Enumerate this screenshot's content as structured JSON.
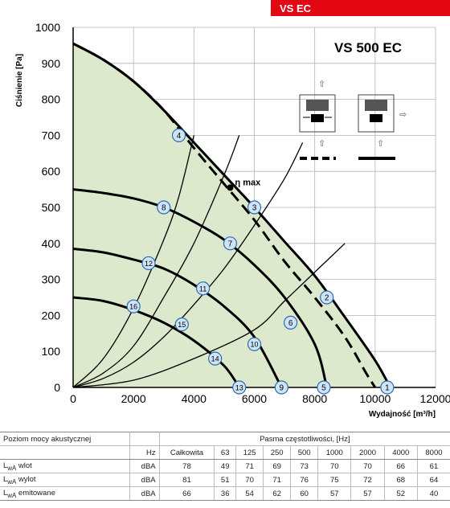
{
  "header": {
    "tag": "VS EC"
  },
  "chart_data": {
    "type": "line",
    "title": "VS 500 EC",
    "xlabel": "Wydajność [m³/h]",
    "ylabel": "Ciśnienie [Pa]",
    "xlim": [
      0,
      12000
    ],
    "ylim": [
      0,
      1000
    ],
    "xticks": [
      0,
      2000,
      4000,
      6000,
      8000,
      10000,
      12000
    ],
    "yticks": [
      0,
      100,
      200,
      300,
      400,
      500,
      600,
      700,
      800,
      900,
      1000
    ],
    "grid": true,
    "eta_label": "η max",
    "eta_point": {
      "x": 5200,
      "y": 555
    },
    "fan_curves": [
      {
        "style": "solid",
        "points": [
          [
            0,
            955
          ],
          [
            1000,
            910
          ],
          [
            2000,
            850
          ],
          [
            3000,
            770
          ],
          [
            4000,
            680
          ],
          [
            5000,
            590
          ],
          [
            6000,
            500
          ],
          [
            7000,
            405
          ],
          [
            8000,
            310
          ],
          [
            9000,
            195
          ],
          [
            10000,
            75
          ],
          [
            10500,
            0
          ]
        ]
      },
      {
        "style": "dashed",
        "points": [
          [
            0,
            955
          ],
          [
            1000,
            910
          ],
          [
            2000,
            850
          ],
          [
            3000,
            770
          ],
          [
            4000,
            665
          ],
          [
            5000,
            565
          ],
          [
            6000,
            465
          ],
          [
            7000,
            350
          ],
          [
            8000,
            250
          ],
          [
            9000,
            140
          ],
          [
            9700,
            40
          ],
          [
            10000,
            0
          ]
        ]
      },
      {
        "style": "solid",
        "points": [
          [
            0,
            550
          ],
          [
            1000,
            540
          ],
          [
            2000,
            525
          ],
          [
            3000,
            500
          ],
          [
            4000,
            460
          ],
          [
            5000,
            410
          ],
          [
            6000,
            340
          ],
          [
            7000,
            250
          ],
          [
            8000,
            120
          ],
          [
            8400,
            0
          ]
        ]
      },
      {
        "style": "solid",
        "points": [
          [
            0,
            385
          ],
          [
            1000,
            375
          ],
          [
            2000,
            355
          ],
          [
            3000,
            330
          ],
          [
            4000,
            285
          ],
          [
            5000,
            225
          ],
          [
            6000,
            140
          ],
          [
            6900,
            0
          ]
        ]
      },
      {
        "style": "solid",
        "points": [
          [
            0,
            250
          ],
          [
            1000,
            240
          ],
          [
            2000,
            215
          ],
          [
            3000,
            180
          ],
          [
            4000,
            130
          ],
          [
            5000,
            60
          ],
          [
            5500,
            0
          ]
        ]
      }
    ],
    "system_curves": [
      {
        "points": [
          [
            0,
            0
          ],
          [
            1000,
            80
          ],
          [
            2000,
            220
          ],
          [
            3000,
            410
          ],
          [
            3500,
            530
          ],
          [
            4000,
            700
          ]
        ]
      },
      {
        "points": [
          [
            0,
            0
          ],
          [
            1000,
            40
          ],
          [
            2000,
            115
          ],
          [
            3000,
            250
          ],
          [
            4000,
            400
          ],
          [
            5000,
            590
          ],
          [
            5500,
            700
          ]
        ]
      },
      {
        "points": [
          [
            0,
            0
          ],
          [
            1000,
            25
          ],
          [
            2000,
            70
          ],
          [
            3000,
            140
          ],
          [
            4000,
            230
          ],
          [
            5000,
            330
          ],
          [
            6000,
            450
          ],
          [
            7000,
            580
          ],
          [
            7600,
            680
          ]
        ]
      },
      {
        "points": [
          [
            0,
            0
          ],
          [
            2000,
            20
          ],
          [
            4000,
            80
          ],
          [
            6000,
            160
          ],
          [
            7000,
            240
          ],
          [
            8000,
            320
          ],
          [
            9000,
            400
          ]
        ]
      }
    ],
    "markers": [
      {
        "label": "1",
        "x": 10400,
        "y": 0
      },
      {
        "label": "2",
        "x": 8400,
        "y": 250
      },
      {
        "label": "3",
        "x": 6000,
        "y": 500
      },
      {
        "label": "4",
        "x": 3500,
        "y": 700
      },
      {
        "label": "5",
        "x": 8300,
        "y": 0
      },
      {
        "label": "6",
        "x": 7200,
        "y": 180
      },
      {
        "label": "7",
        "x": 5200,
        "y": 400
      },
      {
        "label": "8",
        "x": 3000,
        "y": 500
      },
      {
        "label": "9",
        "x": 6900,
        "y": 0
      },
      {
        "label": "10",
        "x": 6000,
        "y": 120
      },
      {
        "label": "11",
        "x": 4300,
        "y": 275
      },
      {
        "label": "12",
        "x": 2500,
        "y": 345
      },
      {
        "label": "13",
        "x": 5500,
        "y": 0
      },
      {
        "label": "14",
        "x": 4700,
        "y": 80
      },
      {
        "label": "15",
        "x": 3600,
        "y": 175
      },
      {
        "label": "16",
        "x": 2000,
        "y": 225
      }
    ]
  },
  "table": {
    "row0": {
      "c0": "Poziom mocy akustycznej",
      "c1": "",
      "group": "Pasma częstotliwości, [Hz]"
    },
    "row1": {
      "c0": "",
      "c1": "Hz",
      "cols": [
        "Całkowita",
        "63",
        "125",
        "250",
        "500",
        "1000",
        "2000",
        "4000",
        "8000"
      ]
    },
    "rows": [
      {
        "label": "wlot",
        "unit": "dBA",
        "values": [
          "78",
          "49",
          "71",
          "69",
          "73",
          "70",
          "70",
          "66",
          "61"
        ]
      },
      {
        "label": "wylot",
        "unit": "dBA",
        "values": [
          "81",
          "51",
          "70",
          "71",
          "76",
          "75",
          "72",
          "68",
          "64"
        ]
      },
      {
        "label": "emitowane",
        "unit": "dBA",
        "values": [
          "66",
          "36",
          "54",
          "62",
          "60",
          "57",
          "57",
          "52",
          "40"
        ]
      }
    ],
    "lwa_prefix": "L",
    "lwa_sub": "wA"
  }
}
